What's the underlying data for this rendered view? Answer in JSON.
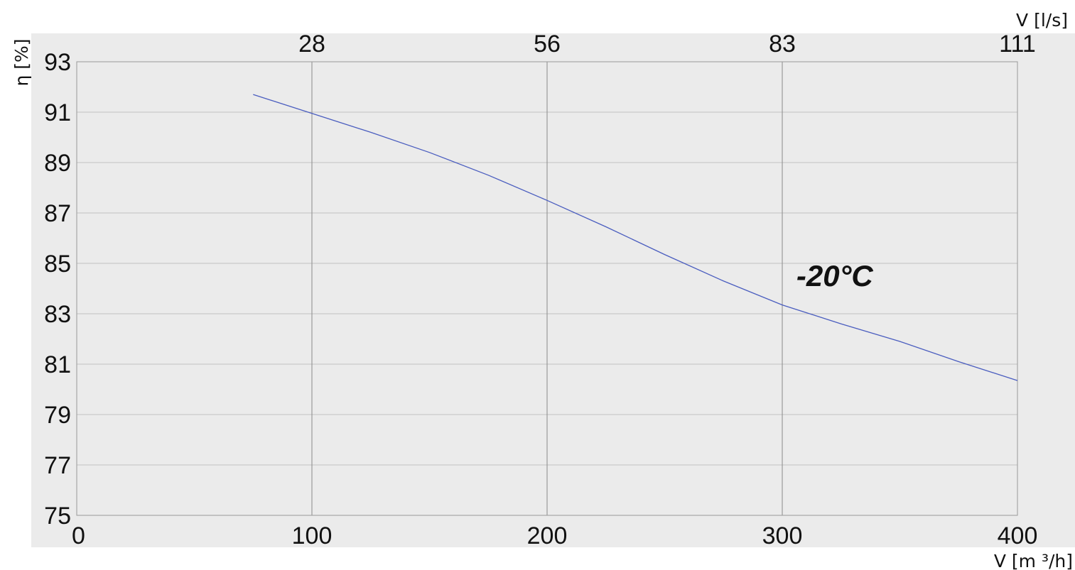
{
  "chart_data": {
    "type": "line",
    "xlabel": "V [m ³/h]",
    "x2label": "V [l/s]",
    "ylabel": "η [%]",
    "xlim": [
      0,
      400
    ],
    "ylim": [
      75,
      93
    ],
    "x_ticks": [
      {
        "value": 0,
        "label": "0"
      },
      {
        "value": 100,
        "label": "100"
      },
      {
        "value": 200,
        "label": "200"
      },
      {
        "value": 300,
        "label": "300"
      },
      {
        "value": 400,
        "label": "400"
      }
    ],
    "x2_ticks": [
      {
        "value": 100,
        "label": "28"
      },
      {
        "value": 200,
        "label": "56"
      },
      {
        "value": 300,
        "label": "83"
      },
      {
        "value": 400,
        "label": "111"
      }
    ],
    "y_ticks": [
      {
        "value": 75,
        "label": "75"
      },
      {
        "value": 77,
        "label": "77"
      },
      {
        "value": 79,
        "label": "79"
      },
      {
        "value": 81,
        "label": "81"
      },
      {
        "value": 83,
        "label": "83"
      },
      {
        "value": 85,
        "label": "85"
      },
      {
        "value": 87,
        "label": "87"
      },
      {
        "value": 89,
        "label": "89"
      },
      {
        "value": 91,
        "label": "91"
      },
      {
        "value": 93,
        "label": "93"
      }
    ],
    "series": [
      {
        "color": "#4a5dbf",
        "x": [
          75,
          100,
          125,
          150,
          175,
          200,
          225,
          250,
          275,
          300,
          325,
          350,
          375,
          400
        ],
        "y": [
          91.7,
          90.95,
          90.2,
          89.4,
          88.5,
          87.5,
          86.45,
          85.35,
          84.3,
          83.35,
          82.6,
          81.9,
          81.1,
          80.35
        ]
      }
    ],
    "annotations": [
      {
        "text": "-20°C",
        "x": 306,
        "y": 84.1
      }
    ],
    "grid": true,
    "colors": {
      "plot_bg": "#ebebeb",
      "line": "#4a5dbf"
    }
  }
}
